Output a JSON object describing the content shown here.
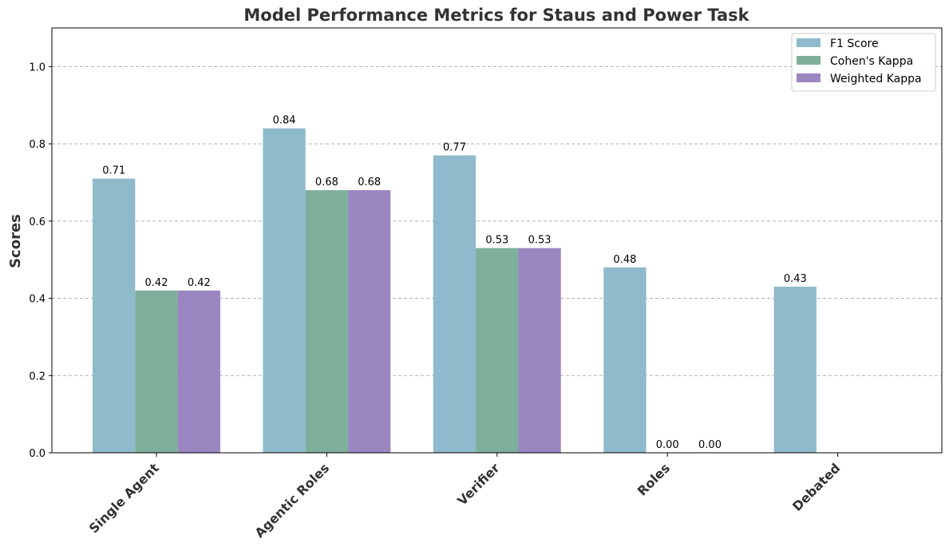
{
  "chart_data": {
    "type": "bar",
    "title": "Model Performance Metrics for Staus and Power Task",
    "xlabel": "",
    "ylabel": "Scores",
    "ylim": [
      0,
      1.1
    ],
    "yticks": [
      0.0,
      0.2,
      0.4,
      0.6,
      0.8,
      1.0
    ],
    "ytick_labels": [
      "0.0",
      "0.2",
      "0.4",
      "0.6",
      "0.8",
      "1.0"
    ],
    "grid": "y dashed",
    "legend_placement": "top-right",
    "categories": [
      "Single Agent",
      "Agentic Roles",
      "Verifier",
      "Roles",
      "Debated"
    ],
    "series": [
      {
        "name": "F1 Score",
        "color": "#8fbacb",
        "values": [
          0.71,
          0.84,
          0.77,
          0.48,
          0.43
        ],
        "labels": [
          "0.71",
          "0.84",
          "0.77",
          "0.48",
          "0.43"
        ]
      },
      {
        "name": "Cohen's Kappa",
        "color": "#7eaf9a",
        "values": [
          0.42,
          0.68,
          0.53,
          0.0,
          null
        ],
        "labels": [
          "0.42",
          "0.68",
          "0.53",
          "0.00",
          ""
        ]
      },
      {
        "name": "Weighted Kappa",
        "color": "#9a86c0",
        "values": [
          0.42,
          0.68,
          0.53,
          0.0,
          null
        ],
        "labels": [
          "0.42",
          "0.68",
          "0.53",
          "0.00",
          ""
        ]
      }
    ]
  }
}
